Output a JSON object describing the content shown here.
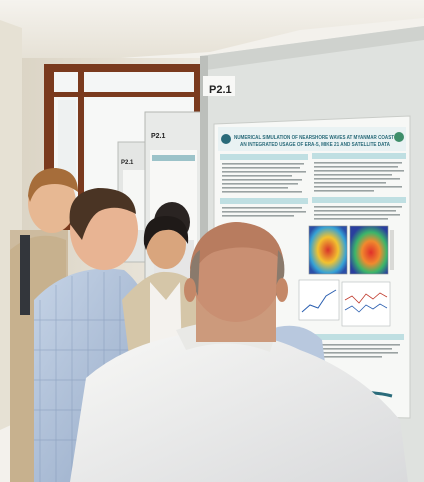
{
  "scene": {
    "board_labels": {
      "main": "P2.1",
      "middle": "P2.1",
      "back": "P2.1"
    },
    "poster": {
      "title_line1": "NUMERICAL SIMULATION OF NEARSHORE WAVES AT MYANMAR COAST",
      "title_line2": "AN INTEGRATED USAGE OF ERA-5, MIKE 21 AND SATELLITE DATA"
    },
    "colors": {
      "poster_accent": "#2a6b7a",
      "wall": "#e9e4d8",
      "door_frame": "#7a3a1e"
    }
  }
}
